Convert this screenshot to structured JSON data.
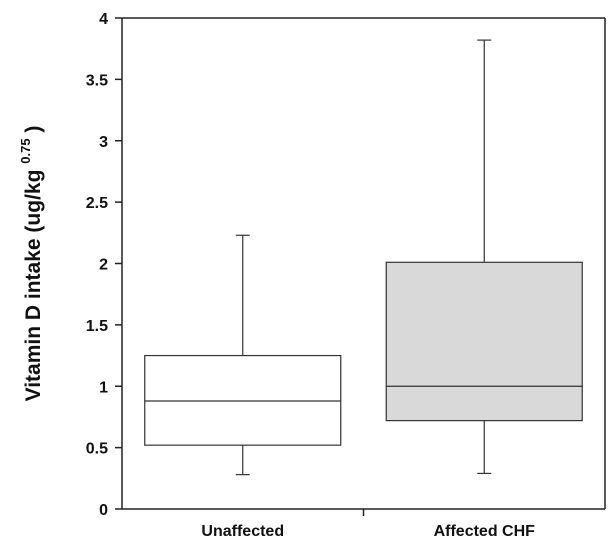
{
  "chart_data": {
    "type": "box",
    "categories": [
      "Unaffected",
      "Affected CHF"
    ],
    "ylabel": "Vitamin D intake (ug/kg",
    "ylabel_superscript": "0.75",
    "ylabel_close": ")",
    "ylim": [
      0,
      4
    ],
    "yticks": [
      "0",
      "0.5",
      "1",
      "1.5",
      "2",
      "2.5",
      "3",
      "3.5",
      "4"
    ],
    "ytick_values": [
      0,
      0.5,
      1,
      1.5,
      2,
      2.5,
      3,
      3.5,
      4
    ],
    "boxes": [
      {
        "category": "Unaffected",
        "whisker_low": 0.28,
        "q1": 0.52,
        "median": 0.88,
        "q3": 1.25,
        "whisker_high": 2.23,
        "fill": "#ffffff"
      },
      {
        "category": "Affected CHF",
        "whisker_low": 0.29,
        "q1": 0.72,
        "median": 1.0,
        "q3": 2.01,
        "whisker_high": 3.82,
        "fill": "#d9d9d9"
      }
    ],
    "grid": false,
    "legend": "none"
  }
}
